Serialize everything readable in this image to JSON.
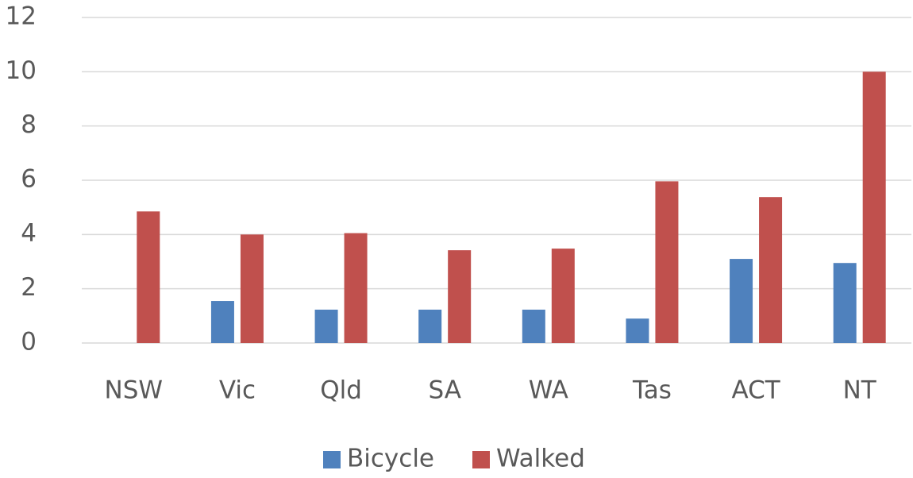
{
  "chart_data": {
    "type": "bar",
    "categories": [
      "NSW",
      "Vic",
      "Qld",
      "SA",
      "WA",
      "Tas",
      "ACT",
      "NT"
    ],
    "series": [
      {
        "name": "Bicycle",
        "color": "#4f81bd",
        "values": [
          null,
          1.55,
          1.23,
          1.23,
          1.23,
          0.9,
          3.1,
          2.95
        ]
      },
      {
        "name": "Walked",
        "color": "#c0504d",
        "values": [
          4.85,
          4.0,
          4.05,
          3.42,
          3.48,
          5.96,
          5.38,
          10.0
        ]
      }
    ],
    "ylim": [
      0,
      12
    ],
    "yticks": [
      0,
      2,
      4,
      6,
      8,
      10,
      12
    ],
    "grid": true,
    "legend": "bottom"
  }
}
